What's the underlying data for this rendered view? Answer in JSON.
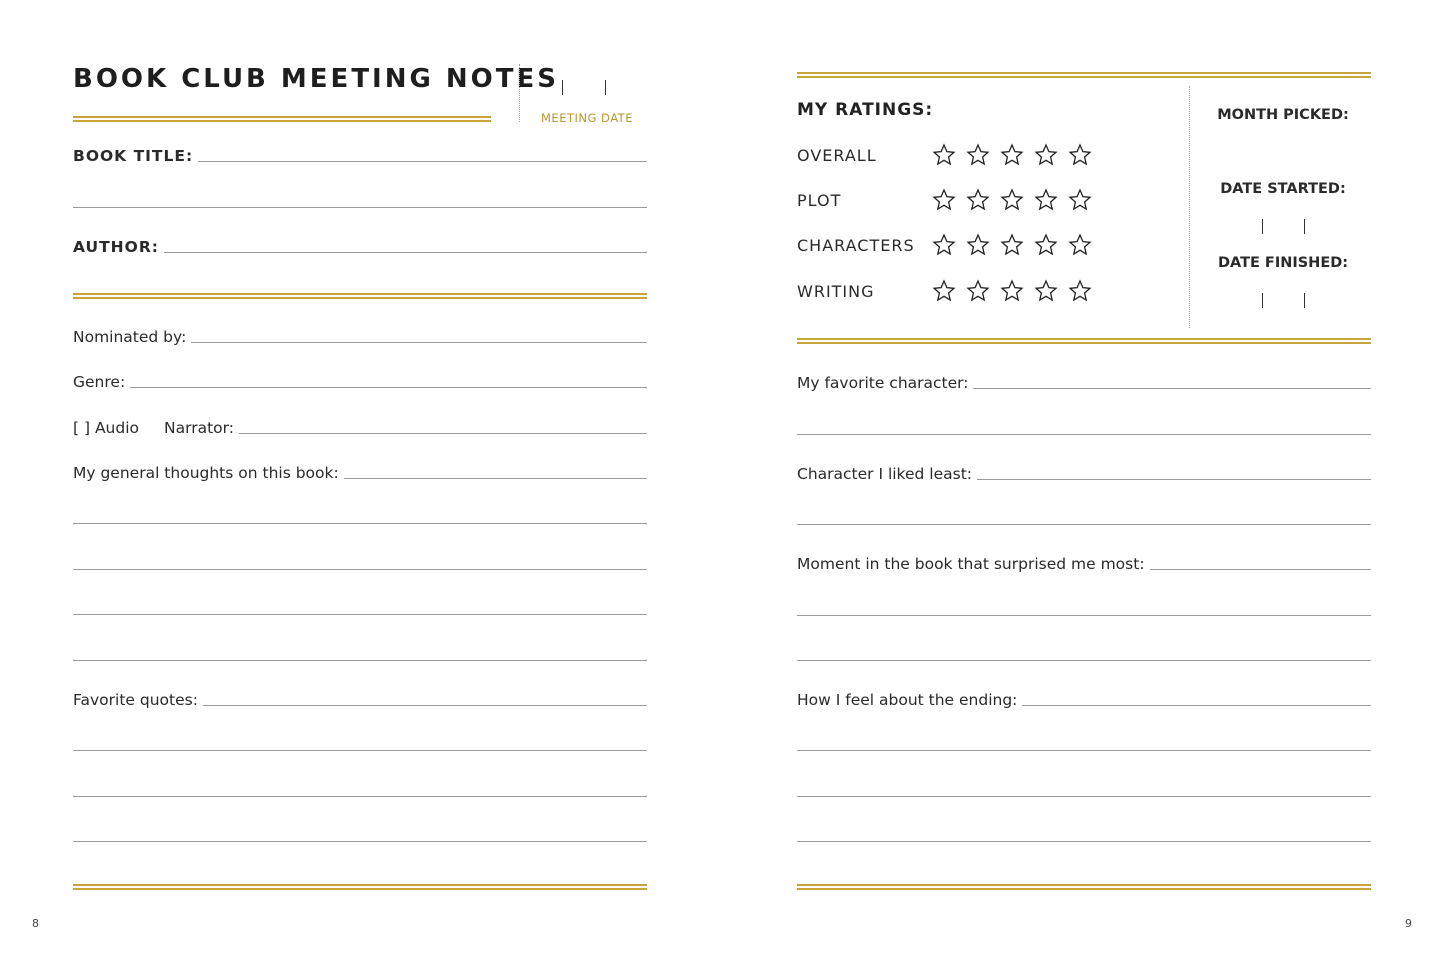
{
  "left_page": {
    "title": "BOOK CLUB MEETING NOTES",
    "meeting_date_label": "MEETING DATE",
    "book_title_label": "BOOK TITLE:",
    "author_label": "AUTHOR:",
    "nominated_label": "Nominated by:",
    "genre_label": "Genre:",
    "audio_label": "[ ] Audio",
    "narrator_label": "Narrator:",
    "thoughts_label": "My general thoughts on this book:",
    "quotes_label": "Favorite quotes:",
    "page_number": "8"
  },
  "right_page": {
    "ratings_label": "MY RATINGS:",
    "ratings": [
      {
        "label": "OVERALL",
        "stars": 5,
        "filled": 0
      },
      {
        "label": "PLOT",
        "stars": 5,
        "filled": 0
      },
      {
        "label": "CHARACTERS",
        "stars": 5,
        "filled": 0
      },
      {
        "label": "WRITING",
        "stars": 5,
        "filled": 0
      }
    ],
    "month_picked_label": "MONTH PICKED:",
    "date_started_label": "DATE STARTED:",
    "date_finished_label": "DATE FINISHED:",
    "favorite_character_label": "My favorite character:",
    "liked_least_label": "Character I liked least:",
    "surprised_label": "Moment in the book that surprised me most:",
    "ending_label": "How I feel about the ending:",
    "page_number": "9"
  },
  "colors": {
    "accent": "#c9a43a",
    "text": "#222222",
    "rule": "#9a9a9a"
  }
}
